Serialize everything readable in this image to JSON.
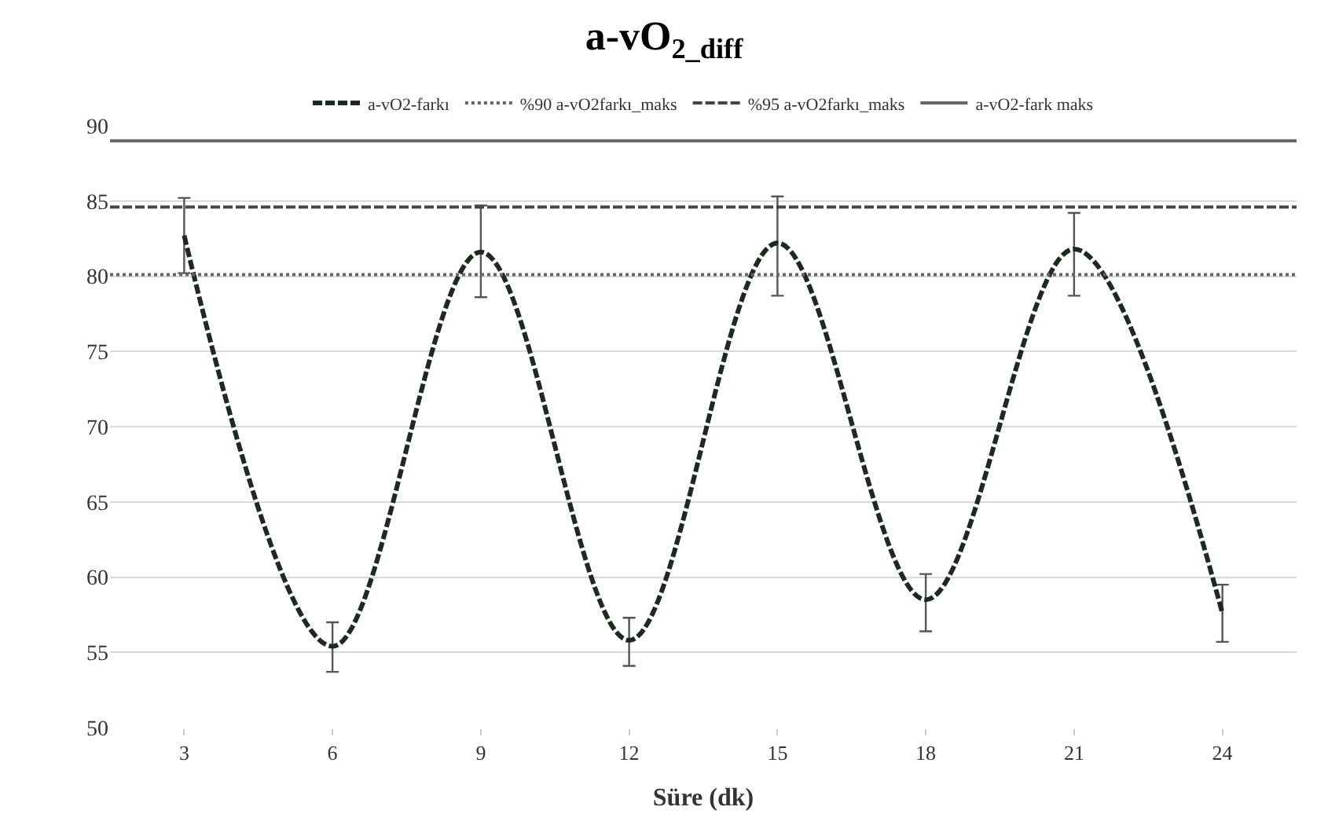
{
  "chart_data": {
    "type": "line",
    "title": "a-vO$_{2_diff}$",
    "xlabel": "Süre (dk)",
    "x": [
      3,
      6,
      9,
      12,
      15,
      18,
      21,
      24
    ],
    "series": [
      {
        "name": "a-vO2-farkı",
        "color": "#1f2a1f",
        "line_style": "dashed",
        "values": [
          82.7,
          55.4,
          81.6,
          55.8,
          82.2,
          58.5,
          81.8,
          57.6
        ],
        "errors": [
          [
            80.2,
            85.2
          ],
          [
            53.7,
            57.0
          ],
          [
            78.6,
            84.7
          ],
          [
            54.1,
            57.3
          ],
          [
            78.7,
            85.3
          ],
          [
            56.4,
            60.2
          ],
          [
            78.7,
            84.2
          ],
          [
            55.7,
            59.5
          ]
        ]
      }
    ],
    "ref_lines": [
      {
        "axis": "y",
        "value": 80.1,
        "label": "%90 a-vO2farkı_maks",
        "color": "#666666",
        "line_style": "dotted"
      },
      {
        "axis": "y",
        "value": 84.6,
        "label": "%95 a-vO2farkı_maks",
        "color": "#444444",
        "line_style": "dashed"
      },
      {
        "axis": "y",
        "value": 89.0,
        "label": "a-vO2-fark maks",
        "color": "#666666",
        "line_style": "solid"
      }
    ],
    "xlim": [
      1.5,
      25.5
    ],
    "xticks": [
      3,
      6,
      9,
      12,
      15,
      18,
      21,
      24
    ],
    "ylim": [
      50,
      90
    ],
    "yticks": [
      50,
      55,
      60,
      65,
      70,
      75,
      80,
      85,
      90
    ],
    "grid": "y",
    "legend": "top",
    "marker": "none"
  }
}
